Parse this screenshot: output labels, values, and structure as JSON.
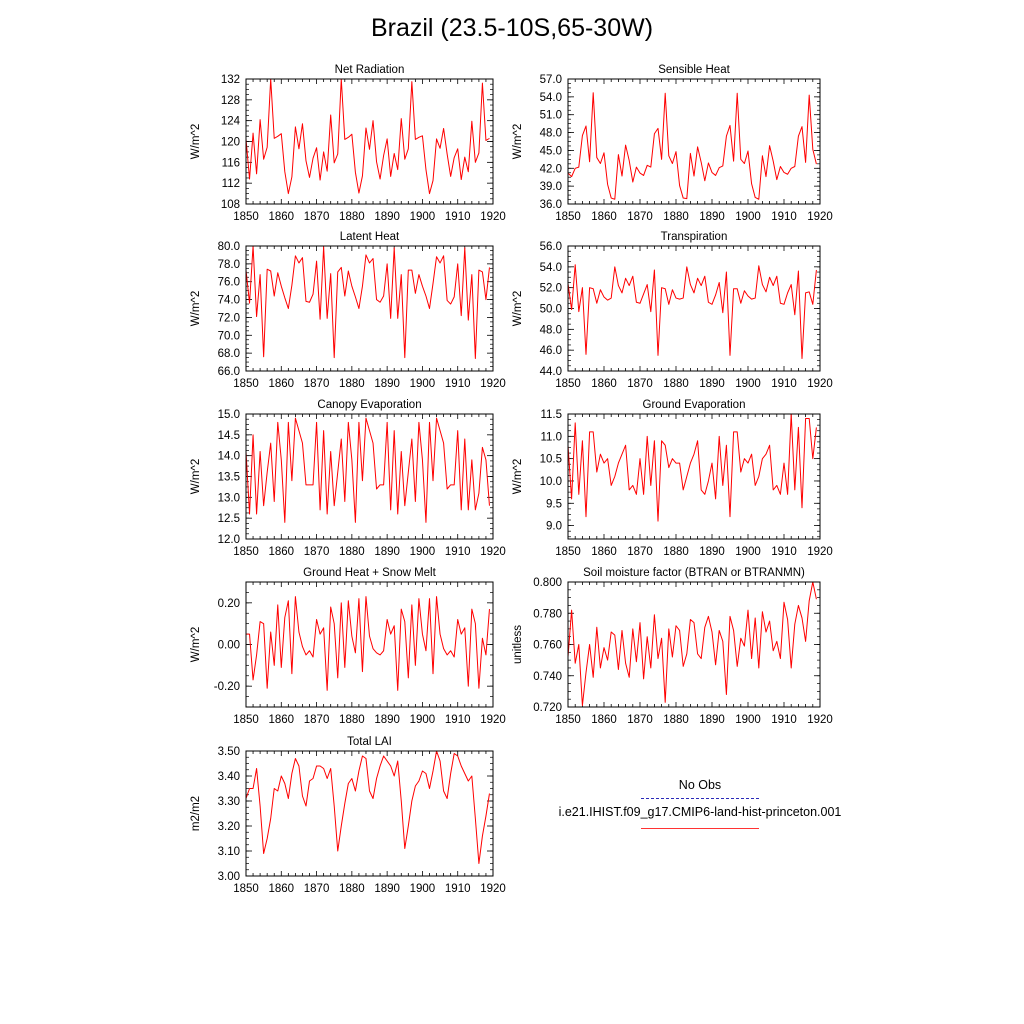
{
  "title": "Brazil (23.5-10S,65-30W)",
  "colors": {
    "model": "#ff0000",
    "obs": "#2a2ab8",
    "axes": "#000000"
  },
  "legend": {
    "obs_label": "No Obs",
    "case_label": "i.e21.IHIST.f09_g17.CMIP6-land-hist-princeton.001"
  },
  "chart_data": [
    {
      "type": "line",
      "title": "Net Radiation",
      "ylabel": "W/m^2",
      "xlim": [
        1850,
        1920
      ],
      "ylim": [
        108,
        132
      ],
      "xticks": [
        1850,
        1860,
        1870,
        1880,
        1890,
        1900,
        1910,
        1920
      ],
      "yticks": [
        108,
        112,
        116,
        120,
        124,
        128,
        132
      ],
      "ytick_labels": [
        "108",
        "112",
        "116",
        "120",
        "124",
        "128",
        "132"
      ],
      "x_start": 1850,
      "series": [
        {
          "values": [
            120.5,
            112.8,
            121.6,
            113.8,
            124.2,
            116.6,
            118.9,
            132.0,
            120.6,
            121.0,
            121.5,
            114.2,
            110.0,
            113.2,
            122.8,
            118.6,
            123.4,
            116.3,
            113.1,
            116.8,
            118.8,
            112.6,
            118.0,
            114.3,
            125.1,
            115.9,
            117.6,
            132.0,
            120.4,
            120.8,
            121.4,
            114.1,
            110.1,
            113.4,
            122.6,
            118.5,
            124.0,
            116.1,
            112.8,
            117.3,
            120.5,
            113.3,
            117.7,
            114.6,
            124.4,
            116.6,
            118.6,
            131.5,
            120.4,
            120.8,
            121.1,
            114.6,
            110.0,
            112.5,
            120.5,
            118.7,
            122.5,
            117.6,
            113.3,
            116.9,
            118.6,
            112.7,
            117.0,
            114.2,
            123.9,
            116.0,
            117.8,
            131.2,
            120.2,
            120.6
          ]
        }
      ]
    },
    {
      "type": "line",
      "title": "Sensible Heat",
      "ylabel": "W/m^2",
      "xlim": [
        1850,
        1920
      ],
      "ylim": [
        36,
        57
      ],
      "xticks": [
        1850,
        1860,
        1870,
        1880,
        1890,
        1900,
        1910,
        1920
      ],
      "yticks": [
        36,
        39,
        42,
        45,
        48,
        51,
        54,
        57
      ],
      "ytick_labels": [
        "36.0",
        "39.0",
        "42.0",
        "45.0",
        "48.0",
        "51.0",
        "54.0",
        "57.0"
      ],
      "x_start": 1850,
      "series": [
        {
          "values": [
            41.2,
            40.6,
            42.0,
            42.2,
            47.5,
            49.1,
            43.1,
            54.7,
            43.8,
            42.8,
            44.6,
            39.3,
            37.0,
            36.8,
            44.3,
            40.7,
            45.9,
            43.3,
            39.7,
            42.2,
            41.2,
            40.8,
            42.5,
            42.2,
            47.8,
            48.7,
            43.5,
            54.6,
            44.1,
            42.8,
            44.8,
            39.1,
            37.0,
            36.9,
            44.5,
            40.7,
            45.6,
            43.0,
            39.9,
            42.9,
            41.3,
            40.8,
            42.1,
            42.4,
            47.4,
            49.2,
            43.2,
            54.6,
            43.5,
            42.8,
            44.9,
            39.4,
            37.1,
            36.8,
            44.1,
            40.6,
            45.8,
            43.2,
            40.1,
            42.3,
            41.3,
            41.0,
            42.0,
            42.3,
            47.4,
            49.0,
            43.0,
            54.3,
            45.2,
            42.7
          ]
        }
      ]
    },
    {
      "type": "line",
      "title": "Latent Heat",
      "ylabel": "W/m^2",
      "xlim": [
        1850,
        1920
      ],
      "ylim": [
        66,
        80
      ],
      "xticks": [
        1850,
        1860,
        1870,
        1880,
        1890,
        1900,
        1910,
        1920
      ],
      "yticks": [
        66,
        68,
        70,
        72,
        74,
        76,
        78,
        80
      ],
      "ytick_labels": [
        "66.0",
        "68.0",
        "70.0",
        "72.0",
        "74.0",
        "76.0",
        "78.0",
        "80.0"
      ],
      "x_start": 1850,
      "series": [
        {
          "values": [
            77.3,
            73.6,
            80.0,
            72.1,
            76.8,
            67.6,
            77.4,
            77.2,
            74.4,
            77.0,
            75.5,
            74.2,
            73.0,
            75.6,
            78.9,
            78.1,
            78.7,
            73.8,
            73.7,
            74.6,
            78.3,
            71.8,
            79.9,
            71.9,
            76.9,
            67.5,
            77.1,
            77.6,
            74.4,
            77.2,
            75.5,
            74.3,
            73.0,
            75.5,
            79.0,
            78.1,
            78.6,
            74.0,
            73.7,
            74.4,
            78.0,
            71.9,
            79.8,
            71.9,
            76.8,
            67.5,
            77.3,
            77.3,
            74.7,
            76.8,
            75.5,
            74.4,
            73.0,
            75.8,
            78.8,
            78.1,
            78.9,
            73.9,
            73.5,
            74.3,
            78.0,
            72.2,
            79.8,
            71.7,
            76.8,
            67.4,
            77.3,
            77.1,
            74.0,
            77.6
          ]
        }
      ]
    },
    {
      "type": "line",
      "title": "Transpiration",
      "ylabel": "W/m^2",
      "xlim": [
        1850,
        1920
      ],
      "ylim": [
        44,
        56
      ],
      "xticks": [
        1850,
        1860,
        1870,
        1880,
        1890,
        1900,
        1910,
        1920
      ],
      "yticks": [
        44,
        46,
        48,
        50,
        52,
        54,
        56
      ],
      "ytick_labels": [
        "44.0",
        "46.0",
        "48.0",
        "50.0",
        "52.0",
        "54.0",
        "56.0"
      ],
      "x_start": 1850,
      "series": [
        {
          "values": [
            52.4,
            49.9,
            54.2,
            49.7,
            52.0,
            45.6,
            52.0,
            51.9,
            50.5,
            51.8,
            51.1,
            50.8,
            51.0,
            54.0,
            52.2,
            51.5,
            52.9,
            52.2,
            53.1,
            50.6,
            50.5,
            51.4,
            52.3,
            49.7,
            53.7,
            45.5,
            52.0,
            51.9,
            50.4,
            51.8,
            51.0,
            50.9,
            51.0,
            54.0,
            52.3,
            51.5,
            52.9,
            52.2,
            53.1,
            50.6,
            50.4,
            51.3,
            52.5,
            49.6,
            53.5,
            45.5,
            51.9,
            51.9,
            50.5,
            51.7,
            51.2,
            50.9,
            51.0,
            54.1,
            52.3,
            51.6,
            53.0,
            52.2,
            53.1,
            50.5,
            50.4,
            51.5,
            52.3,
            49.4,
            53.6,
            45.2,
            51.5,
            51.6,
            50.4,
            53.7
          ]
        }
      ]
    },
    {
      "type": "line",
      "title": "Canopy Evaporation",
      "ylabel": "W/m^2",
      "xlim": [
        1850,
        1920
      ],
      "ylim": [
        12,
        15
      ],
      "xticks": [
        1850,
        1860,
        1870,
        1880,
        1890,
        1900,
        1910,
        1920
      ],
      "yticks": [
        12,
        12.5,
        13,
        13.5,
        14,
        14.5,
        15
      ],
      "ytick_labels": [
        "12.0",
        "12.5",
        "13.0",
        "13.5",
        "14.0",
        "14.5",
        "15.0"
      ],
      "x_start": 1850,
      "series": [
        {
          "values": [
            14.1,
            12.6,
            14.5,
            12.6,
            14.1,
            12.8,
            13.6,
            14.3,
            12.9,
            14.8,
            13.9,
            12.4,
            14.8,
            13.4,
            14.9,
            14.6,
            14.3,
            13.3,
            13.3,
            13.3,
            14.8,
            12.7,
            14.6,
            12.6,
            14.1,
            12.8,
            13.6,
            14.4,
            12.9,
            14.8,
            13.9,
            12.4,
            14.8,
            13.4,
            14.9,
            14.6,
            14.3,
            13.2,
            13.3,
            13.3,
            14.8,
            12.7,
            14.6,
            12.6,
            14.1,
            12.8,
            13.6,
            14.4,
            12.9,
            14.8,
            13.9,
            12.4,
            14.8,
            13.4,
            14.9,
            14.6,
            14.3,
            13.2,
            13.3,
            13.3,
            14.6,
            12.7,
            14.4,
            12.7,
            13.9,
            12.7,
            13.1,
            14.2,
            13.9,
            12.8
          ]
        }
      ]
    },
    {
      "type": "line",
      "title": "Ground Evaporation",
      "ylabel": "W/m^2",
      "xlim": [
        1850,
        1920
      ],
      "ylim": [
        8.7,
        11.5
      ],
      "xticks": [
        1850,
        1860,
        1870,
        1880,
        1890,
        1900,
        1910,
        1920
      ],
      "yticks": [
        9,
        9.5,
        10,
        10.5,
        11,
        11.5
      ],
      "ytick_labels": [
        "9.0",
        "9.5",
        "10.0",
        "10.5",
        "11.0",
        "11.5"
      ],
      "x_start": 1850,
      "series": [
        {
          "values": [
            10.8,
            9.6,
            11.3,
            9.7,
            10.9,
            9.2,
            11.1,
            11.1,
            10.2,
            10.6,
            10.4,
            10.5,
            9.9,
            10.1,
            10.4,
            10.6,
            10.8,
            9.8,
            9.9,
            9.7,
            10.5,
            9.7,
            11.0,
            9.9,
            10.9,
            9.1,
            10.9,
            10.8,
            10.3,
            10.5,
            10.4,
            10.4,
            9.8,
            10.1,
            10.4,
            10.6,
            10.9,
            9.8,
            9.7,
            10.0,
            10.4,
            9.6,
            11.0,
            9.9,
            10.8,
            9.2,
            11.1,
            11.1,
            10.2,
            10.5,
            10.4,
            10.6,
            9.9,
            10.1,
            10.5,
            10.6,
            10.8,
            9.8,
            9.9,
            9.7,
            10.4,
            9.7,
            11.5,
            9.8,
            11.2,
            9.4,
            11.4,
            11.4,
            10.5,
            11.2
          ]
        }
      ]
    },
    {
      "type": "line",
      "title": "Ground Heat + Snow Melt",
      "ylabel": "W/m^2",
      "xlim": [
        1850,
        1920
      ],
      "ylim": [
        -0.3,
        0.3
      ],
      "xticks": [
        1850,
        1860,
        1870,
        1880,
        1890,
        1900,
        1910,
        1920
      ],
      "yticks": [
        -0.2,
        0,
        0.2
      ],
      "ytick_labels": [
        "-0.20",
        "0.00",
        "0.20"
      ],
      "x_start": 1850,
      "series": [
        {
          "values": [
            0.05,
            0.05,
            -0.17,
            -0.05,
            0.11,
            0.1,
            -0.21,
            0.06,
            -0.1,
            0.19,
            -0.11,
            0.13,
            0.21,
            -0.14,
            0.23,
            0.06,
            -0.01,
            -0.05,
            -0.03,
            -0.06,
            0.12,
            0.05,
            0.08,
            -0.22,
            0.18,
            0.1,
            -0.16,
            0.2,
            -0.11,
            0.21,
            0.04,
            -0.04,
            0.22,
            -0.13,
            0.23,
            0.04,
            -0.02,
            -0.04,
            -0.05,
            -0.03,
            0.12,
            0.05,
            0.09,
            -0.22,
            0.17,
            0.11,
            -0.16,
            0.19,
            -0.1,
            0.22,
            0.05,
            -0.03,
            0.22,
            -0.14,
            0.23,
            0.05,
            -0.02,
            -0.05,
            -0.03,
            -0.06,
            0.12,
            0.05,
            0.08,
            -0.2,
            0.17,
            0.1,
            -0.21,
            0.03,
            -0.05,
            0.17
          ]
        }
      ]
    },
    {
      "type": "line",
      "title": "Soil moisture factor (BTRAN or BTRANMN)",
      "ylabel": "unitless",
      "xlim": [
        1850,
        1920
      ],
      "ylim": [
        0.72,
        0.8
      ],
      "xticks": [
        1850,
        1860,
        1870,
        1880,
        1890,
        1900,
        1910,
        1920
      ],
      "yticks": [
        0.72,
        0.74,
        0.76,
        0.78,
        0.8
      ],
      "ytick_labels": [
        "0.720",
        "0.740",
        "0.760",
        "0.780",
        "0.800"
      ],
      "x_start": 1850,
      "series": [
        {
          "values": [
            0.752,
            0.782,
            0.748,
            0.76,
            0.721,
            0.742,
            0.76,
            0.739,
            0.771,
            0.745,
            0.758,
            0.75,
            0.768,
            0.766,
            0.744,
            0.769,
            0.748,
            0.739,
            0.77,
            0.749,
            0.774,
            0.738,
            0.765,
            0.745,
            0.779,
            0.751,
            0.764,
            0.723,
            0.77,
            0.752,
            0.772,
            0.769,
            0.746,
            0.754,
            0.776,
            0.774,
            0.754,
            0.751,
            0.771,
            0.778,
            0.768,
            0.747,
            0.769,
            0.762,
            0.728,
            0.778,
            0.769,
            0.746,
            0.764,
            0.759,
            0.782,
            0.751,
            0.777,
            0.745,
            0.781,
            0.768,
            0.775,
            0.756,
            0.762,
            0.751,
            0.787,
            0.776,
            0.745,
            0.773,
            0.785,
            0.777,
            0.762,
            0.788,
            0.8,
            0.789
          ]
        }
      ]
    },
    {
      "type": "line",
      "title": "Total LAI",
      "ylabel": "m2/m2",
      "xlim": [
        1850,
        1920
      ],
      "ylim": [
        3.0,
        3.5
      ],
      "xticks": [
        1850,
        1860,
        1870,
        1880,
        1890,
        1900,
        1910,
        1920
      ],
      "yticks": [
        3.0,
        3.1,
        3.2,
        3.3,
        3.4,
        3.5
      ],
      "ytick_labels": [
        "3.00",
        "3.10",
        "3.20",
        "3.30",
        "3.40",
        "3.50"
      ],
      "x_start": 1850,
      "series": [
        {
          "values": [
            3.31,
            3.35,
            3.35,
            3.43,
            3.28,
            3.09,
            3.15,
            3.23,
            3.35,
            3.34,
            3.4,
            3.37,
            3.31,
            3.41,
            3.47,
            3.44,
            3.32,
            3.28,
            3.38,
            3.39,
            3.44,
            3.44,
            3.43,
            3.39,
            3.43,
            3.28,
            3.1,
            3.2,
            3.29,
            3.37,
            3.39,
            3.34,
            3.42,
            3.48,
            3.47,
            3.34,
            3.31,
            3.39,
            3.44,
            3.48,
            3.46,
            3.44,
            3.4,
            3.46,
            3.3,
            3.11,
            3.2,
            3.3,
            3.36,
            3.38,
            3.42,
            3.41,
            3.35,
            3.42,
            3.5,
            3.46,
            3.34,
            3.31,
            3.41,
            3.49,
            3.48,
            3.44,
            3.41,
            3.38,
            3.4,
            3.23,
            3.05,
            3.16,
            3.24,
            3.33
          ]
        }
      ]
    }
  ]
}
